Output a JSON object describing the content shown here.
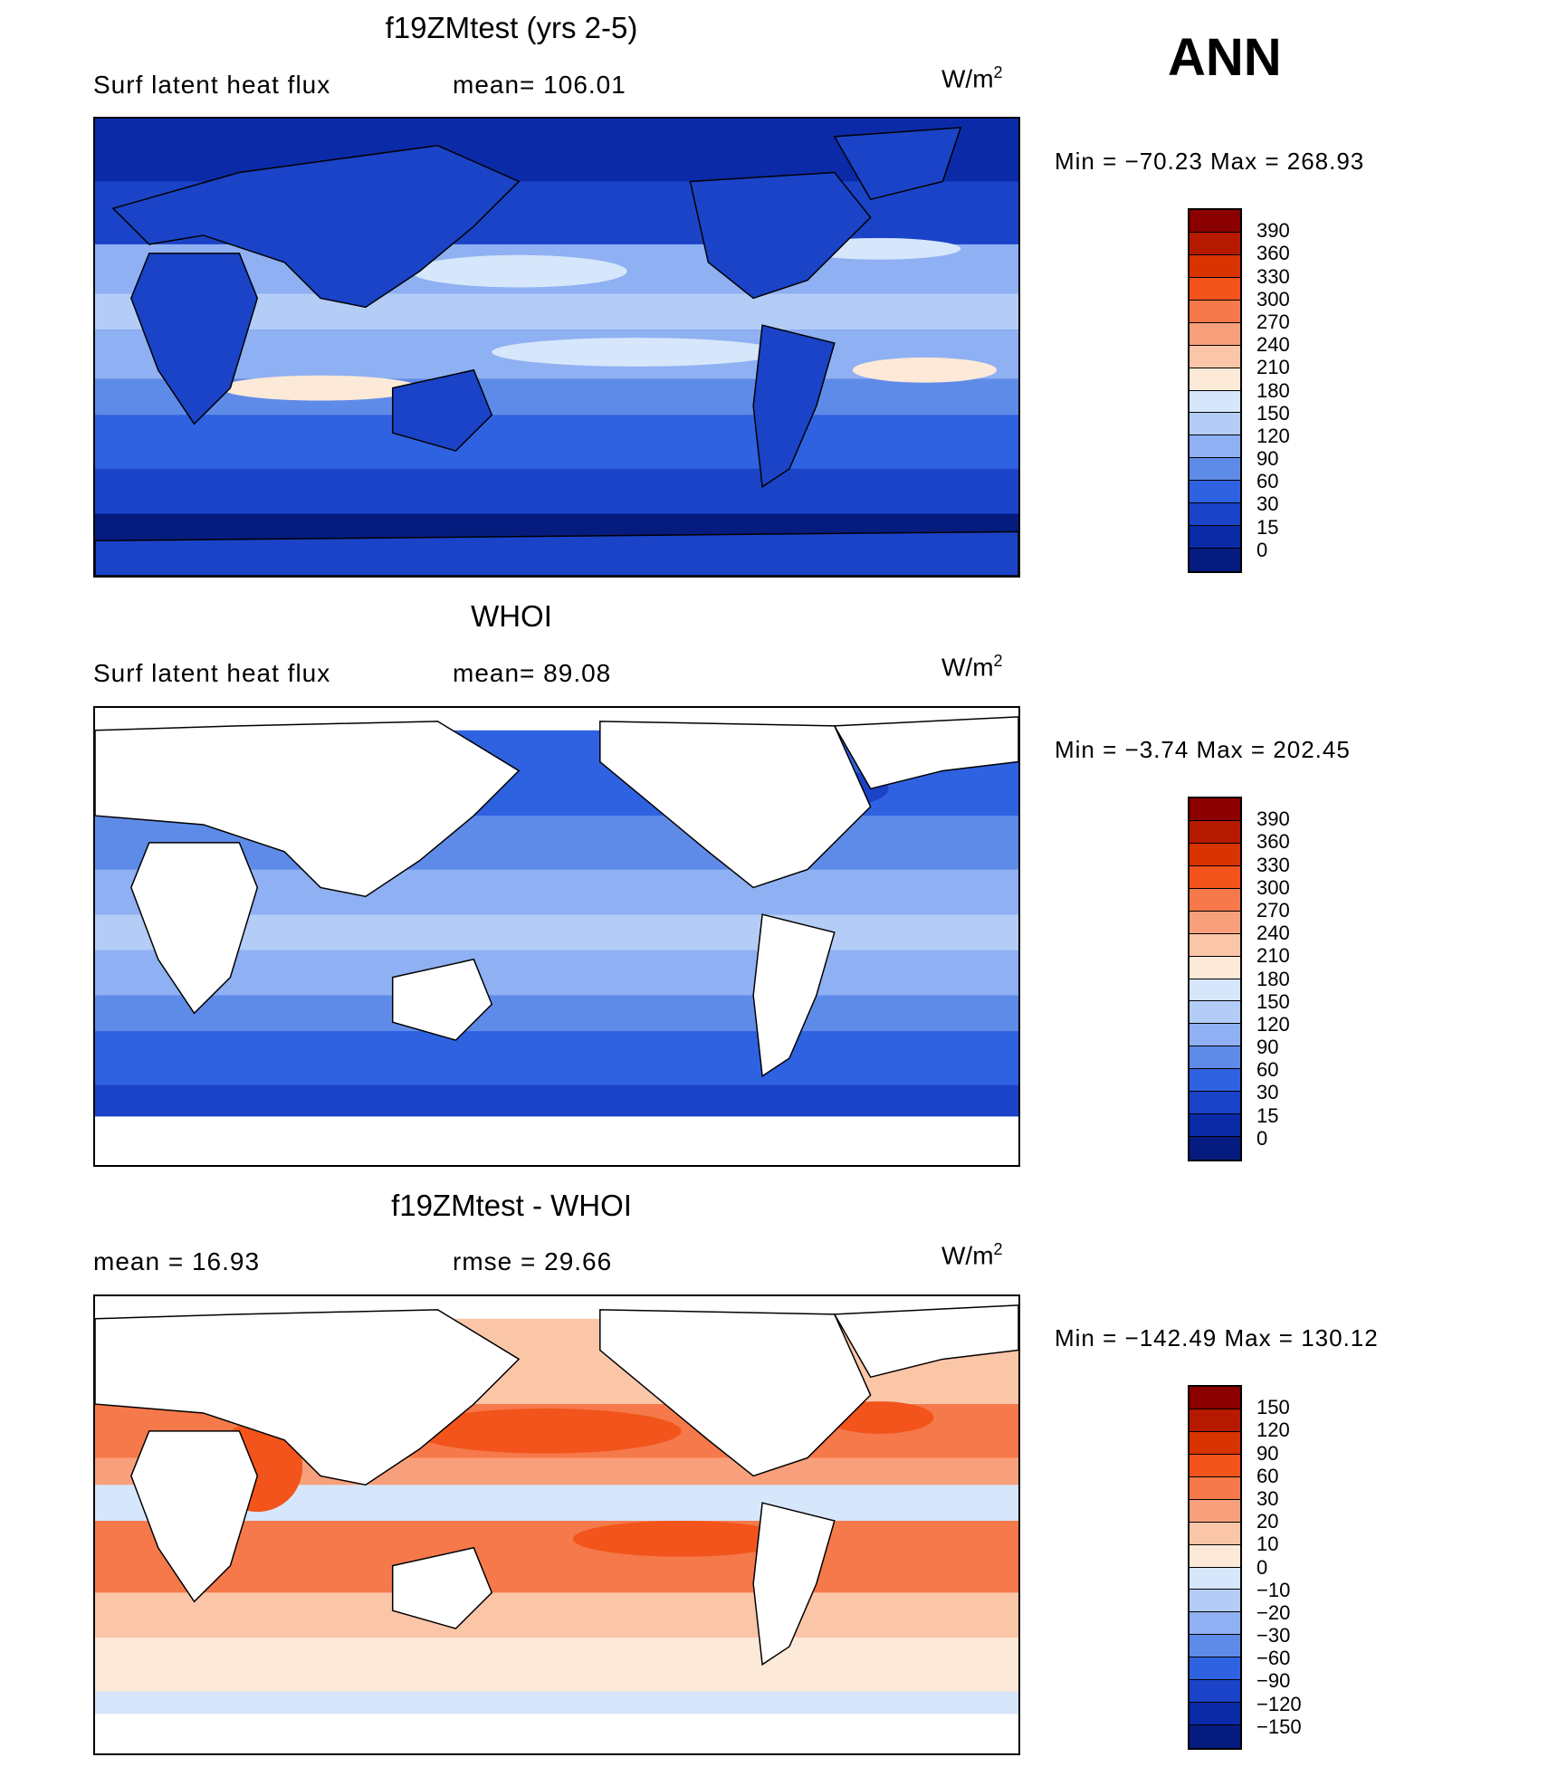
{
  "season": "ANN",
  "panels": [
    {
      "title": "f19ZMtest (yrs 2-5)",
      "left_label": "Surf  latent  heat  flux",
      "mid_label": "mean=  106.01",
      "unit_base": "W/m",
      "unit_exp": "2",
      "minmax": "Min  =  −70.23  Max  =  268.93",
      "scale": "absolute",
      "colorbar_labels": [
        "390",
        "360",
        "330",
        "300",
        "270",
        "240",
        "210",
        "180",
        "150",
        "120",
        "90",
        "60",
        "30",
        "15",
        "0"
      ],
      "colorbar_colors": [
        "#8b0000",
        "#b51a00",
        "#d93300",
        "#f2541b",
        "#f5794a",
        "#f8a07c",
        "#fbc6a8",
        "#fde9d8",
        "#d6e6fb",
        "#b4cdf7",
        "#8fb0f2",
        "#5f8be8",
        "#2f62e0",
        "#1a43c8",
        "#0b2aa8",
        "#051c7e"
      ]
    },
    {
      "title": "WHOI",
      "left_label": "Surf  latent  heat  flux",
      "mid_label": "mean=   89.08",
      "unit_base": "W/m",
      "unit_exp": "2",
      "minmax": "Min  =   −3.74  Max  =  202.45",
      "scale": "absolute",
      "colorbar_labels": [
        "390",
        "360",
        "330",
        "300",
        "270",
        "240",
        "210",
        "180",
        "150",
        "120",
        "90",
        "60",
        "30",
        "15",
        "0"
      ],
      "colorbar_colors": [
        "#8b0000",
        "#b51a00",
        "#d93300",
        "#f2541b",
        "#f5794a",
        "#f8a07c",
        "#fbc6a8",
        "#fde9d8",
        "#d6e6fb",
        "#b4cdf7",
        "#8fb0f2",
        "#5f8be8",
        "#2f62e0",
        "#1a43c8",
        "#0b2aa8",
        "#051c7e"
      ]
    },
    {
      "title": "f19ZMtest - WHOI",
      "left_label": "mean  =     16.93",
      "mid_label": "rmse  =     29.66",
      "unit_base": "W/m",
      "unit_exp": "2",
      "minmax": "Min  =  −142.49  Max  =  130.12",
      "scale": "difference",
      "colorbar_labels": [
        "150",
        "120",
        "90",
        "60",
        "30",
        "20",
        "10",
        "0",
        "−10",
        "−20",
        "−30",
        "−60",
        "−90",
        "−120",
        "−150"
      ],
      "colorbar_colors": [
        "#8b0000",
        "#b51a00",
        "#d93300",
        "#f2541b",
        "#f5794a",
        "#f8a07c",
        "#fbc6a8",
        "#fde9d8",
        "#d6e6fb",
        "#b4cdf7",
        "#8fb0f2",
        "#5f8be8",
        "#2f62e0",
        "#1a43c8",
        "#0b2aa8",
        "#051c7e"
      ]
    }
  ]
}
